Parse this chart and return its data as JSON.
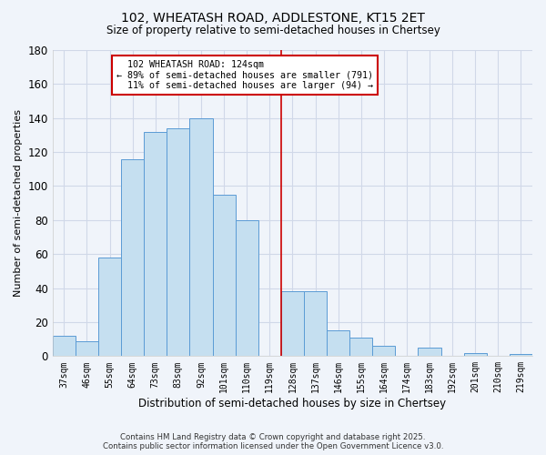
{
  "title": "102, WHEATASH ROAD, ADDLESTONE, KT15 2ET",
  "subtitle": "Size of property relative to semi-detached houses in Chertsey",
  "xlabel": "Distribution of semi-detached houses by size in Chertsey",
  "ylabel": "Number of semi-detached properties",
  "categories": [
    "37sqm",
    "46sqm",
    "55sqm",
    "64sqm",
    "73sqm",
    "83sqm",
    "92sqm",
    "101sqm",
    "110sqm",
    "119sqm",
    "128sqm",
    "137sqm",
    "146sqm",
    "155sqm",
    "164sqm",
    "174sqm",
    "183sqm",
    "192sqm",
    "201sqm",
    "210sqm",
    "219sqm"
  ],
  "values": [
    12,
    9,
    58,
    116,
    132,
    134,
    140,
    95,
    80,
    0,
    38,
    38,
    15,
    11,
    6,
    0,
    5,
    0,
    2,
    0,
    1
  ],
  "bar_color": "#c5dff0",
  "bar_edge_color": "#5b9bd5",
  "marker_index": 9.5,
  "marker_color": "#cc0000",
  "marker_label": "102 WHEATASH ROAD: 124sqm",
  "pct_smaller": 89,
  "count_smaller": 791,
  "pct_larger": 11,
  "count_larger": 94,
  "annotation_box_color": "#ffffff",
  "annotation_box_edge": "#cc0000",
  "ylim": [
    0,
    180
  ],
  "yticks": [
    0,
    20,
    40,
    60,
    80,
    100,
    120,
    140,
    160,
    180
  ],
  "background_color": "#f0f4fa",
  "grid_color": "#d0d8e8",
  "footer_line1": "Contains HM Land Registry data © Crown copyright and database right 2025.",
  "footer_line2": "Contains public sector information licensed under the Open Government Licence v3.0."
}
